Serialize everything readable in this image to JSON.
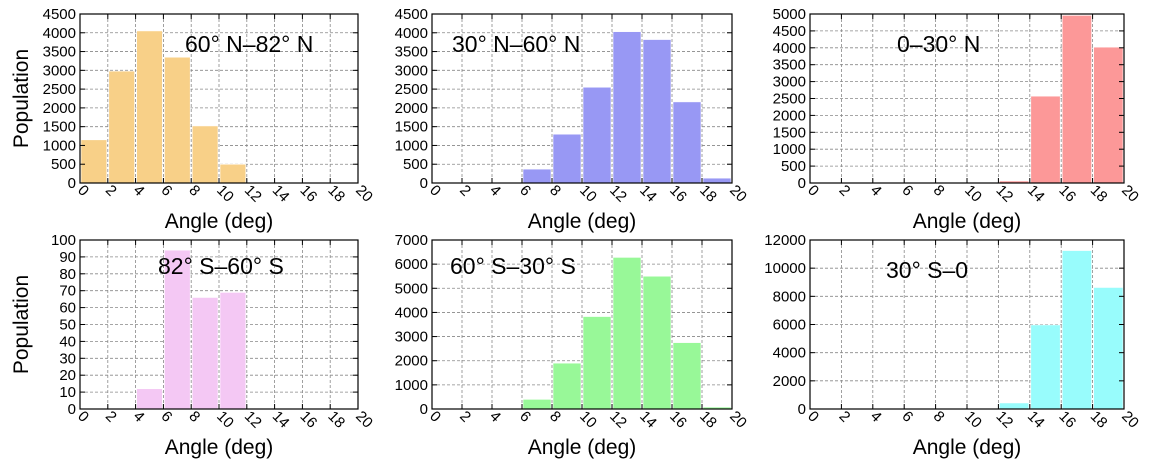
{
  "chart_data": [
    {
      "type": "bar",
      "title": "60° N–82° N",
      "xlabel": "Angle (deg)",
      "ylabel": "Population",
      "bin_edges": [
        0,
        2,
        4,
        6,
        8,
        10,
        12,
        14,
        16,
        18,
        20
      ],
      "values": [
        1150,
        2980,
        4050,
        3350,
        1520,
        500,
        0,
        0,
        0,
        0
      ],
      "xlim": [
        0,
        20
      ],
      "ylim": [
        0,
        4500
      ],
      "xticks": [
        "0",
        "2",
        "4",
        "6",
        "8",
        "10",
        "12",
        "14",
        "16",
        "18",
        "20"
      ],
      "yticks": [
        "0",
        "500",
        "1000",
        "1500",
        "2000",
        "2500",
        "3000",
        "3500",
        "4000",
        "4500"
      ],
      "color": "#f8d088",
      "grid": true
    },
    {
      "type": "bar",
      "title": "30° N–60° N",
      "xlabel": "Angle (deg)",
      "ylabel": "",
      "bin_edges": [
        0,
        2,
        4,
        6,
        8,
        10,
        12,
        14,
        16,
        18,
        20
      ],
      "values": [
        0,
        0,
        0,
        370,
        1300,
        2550,
        4030,
        3820,
        2160,
        130
      ],
      "xlim": [
        0,
        20
      ],
      "ylim": [
        0,
        4500
      ],
      "xticks": [
        "0",
        "2",
        "4",
        "6",
        "8",
        "10",
        "12",
        "14",
        "16",
        "18",
        "20"
      ],
      "yticks": [
        "0",
        "500",
        "1000",
        "1500",
        "2000",
        "2500",
        "3000",
        "3500",
        "4000",
        "4500"
      ],
      "color": "#9898f4",
      "grid": true
    },
    {
      "type": "bar",
      "title": "0–30° N",
      "xlabel": "Angle (deg)",
      "ylabel": "",
      "bin_edges": [
        0,
        2,
        4,
        6,
        8,
        10,
        12,
        14,
        16,
        18,
        20
      ],
      "values": [
        0,
        0,
        0,
        0,
        0,
        0,
        60,
        2570,
        4960,
        4020
      ],
      "xlim": [
        0,
        20
      ],
      "ylim": [
        0,
        5000
      ],
      "xticks": [
        "0",
        "2",
        "4",
        "6",
        "8",
        "10",
        "12",
        "14",
        "16",
        "18",
        "20"
      ],
      "yticks": [
        "0",
        "500",
        "1000",
        "1500",
        "2000",
        "2500",
        "3000",
        "3500",
        "4000",
        "4500",
        "5000"
      ],
      "color": "#fc9898",
      "grid": true
    },
    {
      "type": "bar",
      "title": "82° S–60° S",
      "xlabel": "Angle (deg)",
      "ylabel": "Population",
      "bin_edges": [
        0,
        2,
        4,
        6,
        8,
        10,
        12,
        14,
        16,
        18,
        20
      ],
      "values": [
        0,
        0,
        12,
        94,
        66,
        69,
        0,
        0,
        0,
        0
      ],
      "xlim": [
        0,
        20
      ],
      "ylim": [
        0,
        100
      ],
      "xticks": [
        "0",
        "2",
        "4",
        "6",
        "8",
        "10",
        "12",
        "14",
        "16",
        "18",
        "20"
      ],
      "yticks": [
        "0",
        "10",
        "20",
        "30",
        "40",
        "50",
        "60",
        "70",
        "80",
        "90",
        "100"
      ],
      "color": "#f4c8f4",
      "grid": true
    },
    {
      "type": "bar",
      "title": "60° S–30° S",
      "xlabel": "Angle (deg)",
      "ylabel": "",
      "bin_edges": [
        0,
        2,
        4,
        6,
        8,
        10,
        12,
        14,
        16,
        18,
        20
      ],
      "values": [
        0,
        0,
        0,
        400,
        1900,
        3830,
        6280,
        5500,
        2750,
        80
      ],
      "xlim": [
        0,
        20
      ],
      "ylim": [
        0,
        7000
      ],
      "xticks": [
        "0",
        "2",
        "4",
        "6",
        "8",
        "10",
        "12",
        "14",
        "16",
        "18",
        "20"
      ],
      "yticks": [
        "0",
        "1000",
        "2000",
        "3000",
        "4000",
        "5000",
        "6000",
        "7000"
      ],
      "color": "#98f898",
      "grid": true
    },
    {
      "type": "bar",
      "title": "30° S–0",
      "xlabel": "Angle (deg)",
      "ylabel": "",
      "bin_edges": [
        0,
        2,
        4,
        6,
        8,
        10,
        12,
        14,
        16,
        18,
        20
      ],
      "values": [
        0,
        0,
        0,
        0,
        0,
        0,
        430,
        5970,
        11250,
        8630
      ],
      "xlim": [
        0,
        20
      ],
      "ylim": [
        0,
        12000
      ],
      "xticks": [
        "0",
        "2",
        "4",
        "6",
        "8",
        "10",
        "12",
        "14",
        "16",
        "18",
        "20"
      ],
      "yticks": [
        "0",
        "2000",
        "4000",
        "6000",
        "8000",
        "10000",
        "12000"
      ],
      "color": "#98fcfc",
      "grid": true
    }
  ]
}
